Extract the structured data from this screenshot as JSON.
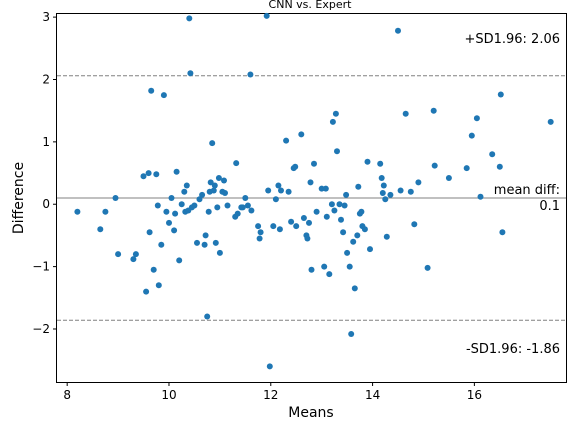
{
  "chart_data": {
    "type": "scatter",
    "title": "CNN vs. Expert",
    "xlabel": "Means",
    "ylabel": "Difference",
    "xlim": [
      7.8,
      17.8
    ],
    "ylim": [
      -2.85,
      3.05
    ],
    "xticks": [
      8,
      10,
      12,
      14,
      16
    ],
    "yticks": [
      -2,
      -1,
      0,
      1,
      2,
      3
    ],
    "grid": false,
    "point_color": "#1f77b4",
    "line_color": "#808080",
    "mean_diff": 0.1,
    "upper_loa": 2.06,
    "lower_loa": -1.86,
    "annotations": {
      "upper": "+SD1.96: 2.06",
      "mean_line1": "mean diff:",
      "mean_line2": "0.1",
      "lower": "-SD1.96: -1.86"
    },
    "points": [
      [
        8.2,
        -0.12
      ],
      [
        8.65,
        -0.4
      ],
      [
        8.75,
        -0.12
      ],
      [
        8.95,
        0.1
      ],
      [
        9.0,
        -0.8
      ],
      [
        9.3,
        -0.88
      ],
      [
        9.35,
        -0.8
      ],
      [
        9.5,
        0.45
      ],
      [
        9.55,
        -1.4
      ],
      [
        9.6,
        0.5
      ],
      [
        9.62,
        -0.45
      ],
      [
        9.65,
        1.82
      ],
      [
        9.7,
        -1.05
      ],
      [
        9.75,
        0.48
      ],
      [
        9.78,
        -0.02
      ],
      [
        9.8,
        -1.3
      ],
      [
        9.85,
        -0.65
      ],
      [
        9.9,
        1.75
      ],
      [
        9.95,
        -0.12
      ],
      [
        10.0,
        -0.3
      ],
      [
        10.05,
        0.1
      ],
      [
        10.1,
        -0.42
      ],
      [
        10.12,
        -0.15
      ],
      [
        10.15,
        0.52
      ],
      [
        10.2,
        -0.9
      ],
      [
        10.25,
        0.0
      ],
      [
        10.3,
        0.2
      ],
      [
        10.32,
        -0.12
      ],
      [
        10.35,
        0.3
      ],
      [
        10.38,
        -0.1
      ],
      [
        10.4,
        2.98
      ],
      [
        10.42,
        2.1
      ],
      [
        10.45,
        -0.05
      ],
      [
        10.5,
        -0.02
      ],
      [
        10.55,
        -0.62
      ],
      [
        10.6,
        0.08
      ],
      [
        10.65,
        0.15
      ],
      [
        10.7,
        -0.65
      ],
      [
        10.72,
        -0.5
      ],
      [
        10.75,
        -1.8
      ],
      [
        10.78,
        -0.12
      ],
      [
        10.8,
        0.2
      ],
      [
        10.82,
        0.35
      ],
      [
        10.85,
        0.98
      ],
      [
        10.88,
        0.22
      ],
      [
        10.9,
        0.3
      ],
      [
        10.92,
        -0.62
      ],
      [
        10.95,
        -0.05
      ],
      [
        10.98,
        0.42
      ],
      [
        11.0,
        -0.78
      ],
      [
        11.05,
        0.2
      ],
      [
        11.08,
        0.38
      ],
      [
        11.1,
        0.18
      ],
      [
        11.15,
        -0.02
      ],
      [
        11.3,
        -0.2
      ],
      [
        11.32,
        0.66
      ],
      [
        11.35,
        -0.15
      ],
      [
        11.42,
        -0.05
      ],
      [
        11.45,
        -0.05
      ],
      [
        11.5,
        0.1
      ],
      [
        11.55,
        -0.02
      ],
      [
        11.6,
        2.08
      ],
      [
        11.62,
        -0.1
      ],
      [
        11.75,
        -0.35
      ],
      [
        11.78,
        -0.55
      ],
      [
        11.8,
        -0.45
      ],
      [
        11.92,
        3.02
      ],
      [
        11.95,
        0.22
      ],
      [
        11.98,
        -2.6
      ],
      [
        12.05,
        -0.35
      ],
      [
        12.1,
        0.08
      ],
      [
        12.15,
        0.3
      ],
      [
        12.18,
        -0.4
      ],
      [
        12.2,
        0.22
      ],
      [
        12.3,
        1.02
      ],
      [
        12.35,
        0.2
      ],
      [
        12.4,
        -0.28
      ],
      [
        12.45,
        0.58
      ],
      [
        12.48,
        0.6
      ],
      [
        12.5,
        -0.35
      ],
      [
        12.6,
        1.12
      ],
      [
        12.65,
        -0.22
      ],
      [
        12.7,
        -0.5
      ],
      [
        12.72,
        -0.55
      ],
      [
        12.75,
        -0.3
      ],
      [
        12.78,
        0.35
      ],
      [
        12.8,
        -1.05
      ],
      [
        12.85,
        0.65
      ],
      [
        12.9,
        -0.12
      ],
      [
        13.0,
        0.25
      ],
      [
        13.05,
        -1.0
      ],
      [
        13.08,
        0.25
      ],
      [
        13.1,
        -0.2
      ],
      [
        13.15,
        -1.12
      ],
      [
        13.2,
        0.0
      ],
      [
        13.22,
        1.32
      ],
      [
        13.25,
        -0.1
      ],
      [
        13.28,
        1.45
      ],
      [
        13.3,
        0.85
      ],
      [
        13.35,
        0.0
      ],
      [
        13.38,
        -0.25
      ],
      [
        13.42,
        -0.45
      ],
      [
        13.45,
        -0.02
      ],
      [
        13.48,
        0.15
      ],
      [
        13.5,
        -0.78
      ],
      [
        13.55,
        -1.0
      ],
      [
        13.58,
        -2.08
      ],
      [
        13.62,
        -0.6
      ],
      [
        13.65,
        -1.35
      ],
      [
        13.7,
        -0.5
      ],
      [
        13.72,
        0.28
      ],
      [
        13.75,
        -0.15
      ],
      [
        13.78,
        -0.12
      ],
      [
        13.8,
        -0.35
      ],
      [
        13.85,
        -0.4
      ],
      [
        13.9,
        0.68
      ],
      [
        13.95,
        -0.72
      ],
      [
        14.15,
        0.65
      ],
      [
        14.18,
        0.42
      ],
      [
        14.2,
        0.18
      ],
      [
        14.22,
        0.3
      ],
      [
        14.25,
        0.08
      ],
      [
        14.28,
        -0.52
      ],
      [
        14.35,
        0.15
      ],
      [
        14.5,
        2.78
      ],
      [
        14.55,
        0.22
      ],
      [
        14.65,
        1.45
      ],
      [
        14.75,
        0.2
      ],
      [
        14.82,
        -0.32
      ],
      [
        14.9,
        0.35
      ],
      [
        15.08,
        -1.02
      ],
      [
        15.2,
        1.5
      ],
      [
        15.22,
        0.62
      ],
      [
        15.5,
        0.42
      ],
      [
        15.85,
        0.58
      ],
      [
        15.95,
        1.1
      ],
      [
        16.05,
        1.38
      ],
      [
        16.12,
        0.12
      ],
      [
        16.35,
        0.8
      ],
      [
        16.5,
        0.6
      ],
      [
        16.52,
        1.76
      ],
      [
        16.55,
        -0.45
      ],
      [
        17.5,
        1.32
      ]
    ]
  }
}
